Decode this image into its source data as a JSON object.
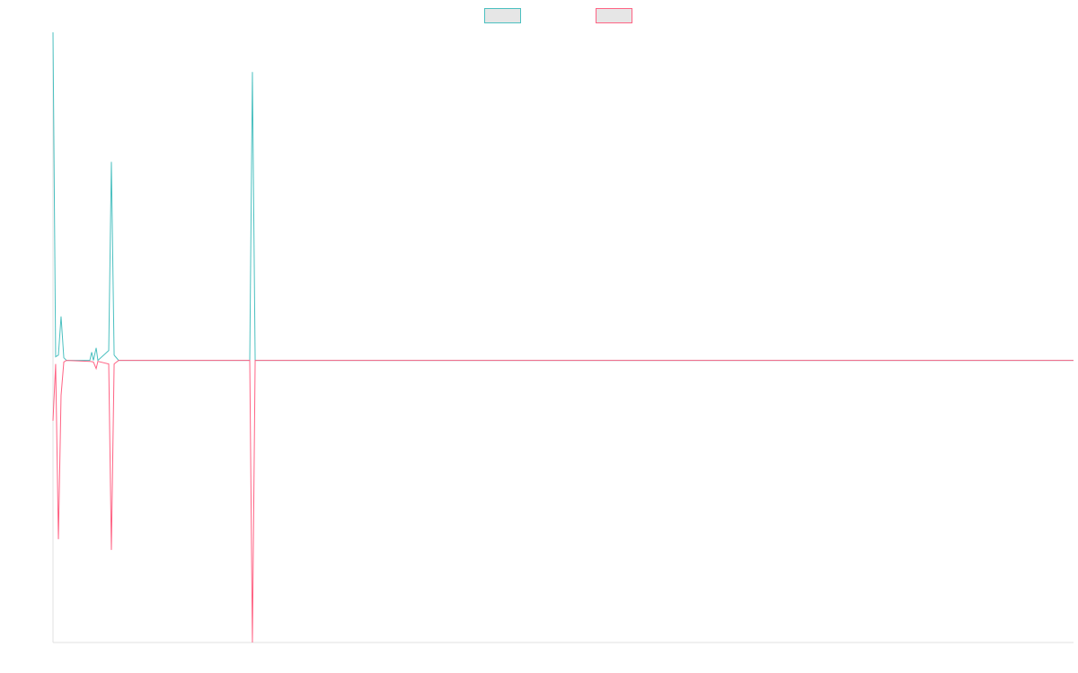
{
  "chart_data": {
    "type": "line",
    "x": [
      0,
      0.26,
      0.53,
      0.79,
      1.06,
      1.32,
      3.61,
      3.79,
      3.96,
      4.23,
      4.4,
      5.46,
      5.72,
      5.99,
      6.43,
      19.28,
      19.54,
      19.81,
      100
    ],
    "series": [
      {
        "color": "#4bc0c0",
        "values": [
          100,
          1.1,
          1.6,
          13.4,
          0.8,
          0,
          0,
          2.5,
          0,
          3.8,
          0,
          3,
          60.5,
          1.6,
          0,
          0,
          87.9,
          0,
          0
        ]
      },
      {
        "color": "#ff6384",
        "values": [
          -18.4,
          -1.1,
          -54.5,
          -10.7,
          -0.5,
          0,
          -0.3,
          -0.4,
          -0.5,
          -2.5,
          -0.3,
          -1.1,
          -57.8,
          -1.1,
          0,
          0,
          -86,
          0,
          0
        ]
      }
    ],
    "xlim": [
      0,
      100
    ],
    "ylim": [
      -86,
      100
    ],
    "grid": false,
    "legend": "top"
  }
}
